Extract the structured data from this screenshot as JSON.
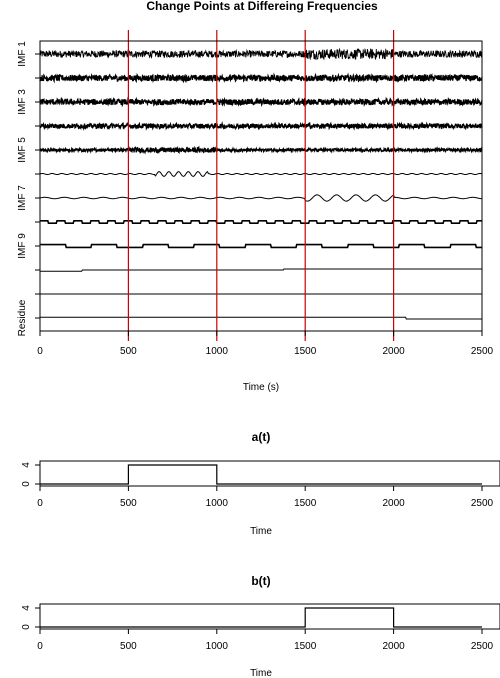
{
  "chart_data": [
    {
      "type": "line",
      "title": "Change Points at Differeing Frequencies",
      "xlabel": "Time (s)",
      "xlim": [
        0,
        2500
      ],
      "x_ticks": [
        0,
        500,
        1000,
        1500,
        2000,
        2500
      ],
      "y_tick_labels": [
        "IMF 1",
        "IMF 3",
        "IMF 5",
        "IMF 7",
        "IMF 9",
        "Residue"
      ],
      "change_points": [
        500,
        1000,
        1500,
        2000
      ],
      "change_point_color": "#cc0000",
      "series": [
        {
          "kind": "noise",
          "amp": 1.0,
          "burst": [
            [
              1500,
              2000,
              1.5
            ]
          ]
        },
        {
          "kind": "noise",
          "amp": 0.9
        },
        {
          "kind": "noise",
          "amp": 0.85
        },
        {
          "kind": "noise",
          "amp": 0.7
        },
        {
          "kind": "noise",
          "amp": 0.4,
          "burst": [
            [
              500,
              1000,
              1.8
            ]
          ]
        },
        {
          "kind": "wave",
          "period": 55,
          "amp": 0.15,
          "burst": [
            [
              650,
              950,
              4.5
            ]
          ]
        },
        {
          "kind": "wave",
          "period": 110,
          "amp": 0.2,
          "burst": [
            [
              1500,
              2000,
              4.5
            ]
          ]
        },
        {
          "kind": "square",
          "period": 95,
          "amp": 0.35
        },
        {
          "kind": "square",
          "period": 290,
          "amp": 0.4
        },
        {
          "kind": "steps",
          "levels": [
            [
              0,
              240,
              -0.35
            ],
            [
              240,
              1380,
              0.0
            ],
            [
              1380,
              2500,
              0.3
            ]
          ]
        },
        {
          "kind": "flat"
        },
        {
          "kind": "steps",
          "levels": [
            [
              0,
              2070,
              0.2
            ],
            [
              2070,
              2500,
              -0.3
            ]
          ]
        }
      ]
    },
    {
      "type": "line",
      "title": "a(t)",
      "xlabel": "Time",
      "xlim": [
        0,
        2500
      ],
      "ylim": [
        0,
        4
      ],
      "x_ticks": [
        0,
        500,
        1000,
        1500,
        2000,
        2500
      ],
      "y_ticks": [
        0,
        4
      ],
      "x": [
        0,
        500,
        500,
        1000,
        1000,
        2500
      ],
      "y": [
        0,
        0,
        4,
        4,
        0,
        0
      ]
    },
    {
      "type": "line",
      "title": "b(t)",
      "xlabel": "Time",
      "xlim": [
        0,
        2500
      ],
      "ylim": [
        0,
        4
      ],
      "x_ticks": [
        0,
        500,
        1000,
        1500,
        2000,
        2500
      ],
      "y_ticks": [
        0,
        4
      ],
      "x": [
        0,
        1500,
        1500,
        2000,
        2000,
        2500
      ],
      "y": [
        0,
        0,
        4,
        4,
        0,
        0
      ]
    }
  ]
}
